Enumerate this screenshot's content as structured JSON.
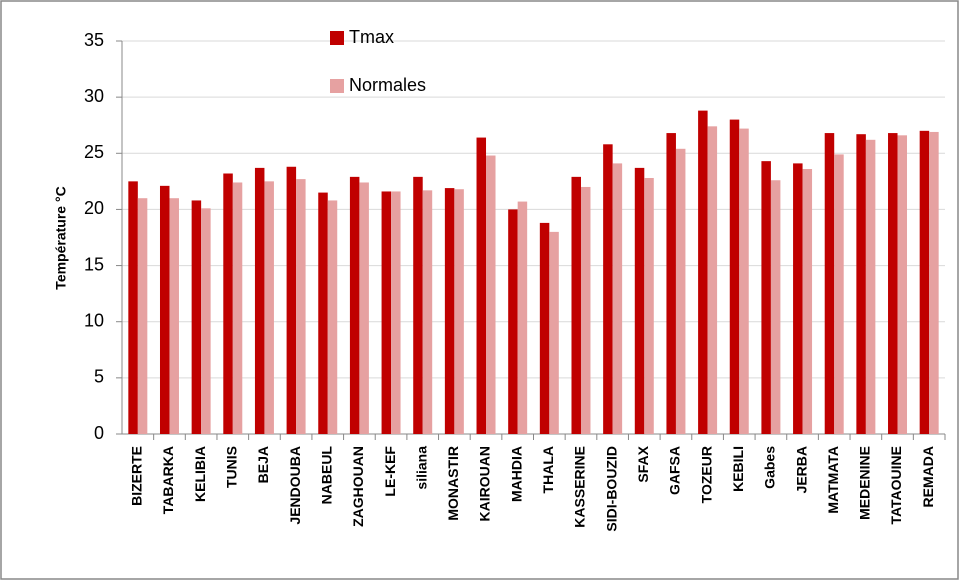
{
  "chart_data": {
    "type": "bar",
    "y_label": "Température °C",
    "categories": [
      "BIZERTE",
      "TABARKA",
      "KELIBIA",
      "TUNIS",
      "BEJA",
      "JENDOUBA",
      "NABEUL",
      "ZAGHOUAN",
      "LE-KEF",
      "siliana",
      "MONASTIR",
      "KAIROUAN",
      "MAHDIA",
      "THALA",
      "KASSERINE",
      "SIDI-BOUZID",
      "SFAX",
      "GAFSA",
      "TOZEUR",
      "KEBILI",
      "Gabes",
      "JERBA",
      "MATMATA",
      "MEDENINE",
      "TATAOUINE",
      "REMADA"
    ],
    "series": [
      {
        "name": "Tmax",
        "color": "#c00000",
        "values": [
          22.5,
          22.1,
          20.8,
          23.2,
          23.7,
          23.8,
          21.5,
          22.9,
          21.6,
          22.9,
          21.9,
          26.4,
          20.0,
          18.8,
          22.9,
          25.8,
          23.7,
          26.8,
          28.8,
          28.0,
          24.3,
          24.1,
          26.8,
          26.7,
          26.8,
          27.0
        ]
      },
      {
        "name": "Normales",
        "color": "#e6a1a1",
        "values": [
          21.0,
          21.0,
          20.1,
          22.4,
          22.5,
          22.7,
          20.8,
          22.4,
          21.6,
          21.7,
          21.8,
          24.8,
          20.7,
          18.0,
          22.0,
          24.1,
          22.8,
          25.4,
          27.4,
          27.2,
          22.6,
          23.6,
          24.9,
          26.2,
          26.6,
          26.9
        ]
      }
    ],
    "ylim": [
      0,
      35
    ],
    "yticks": [
      0,
      5,
      10,
      15,
      20,
      25,
      30,
      35
    ],
    "grid": true
  }
}
